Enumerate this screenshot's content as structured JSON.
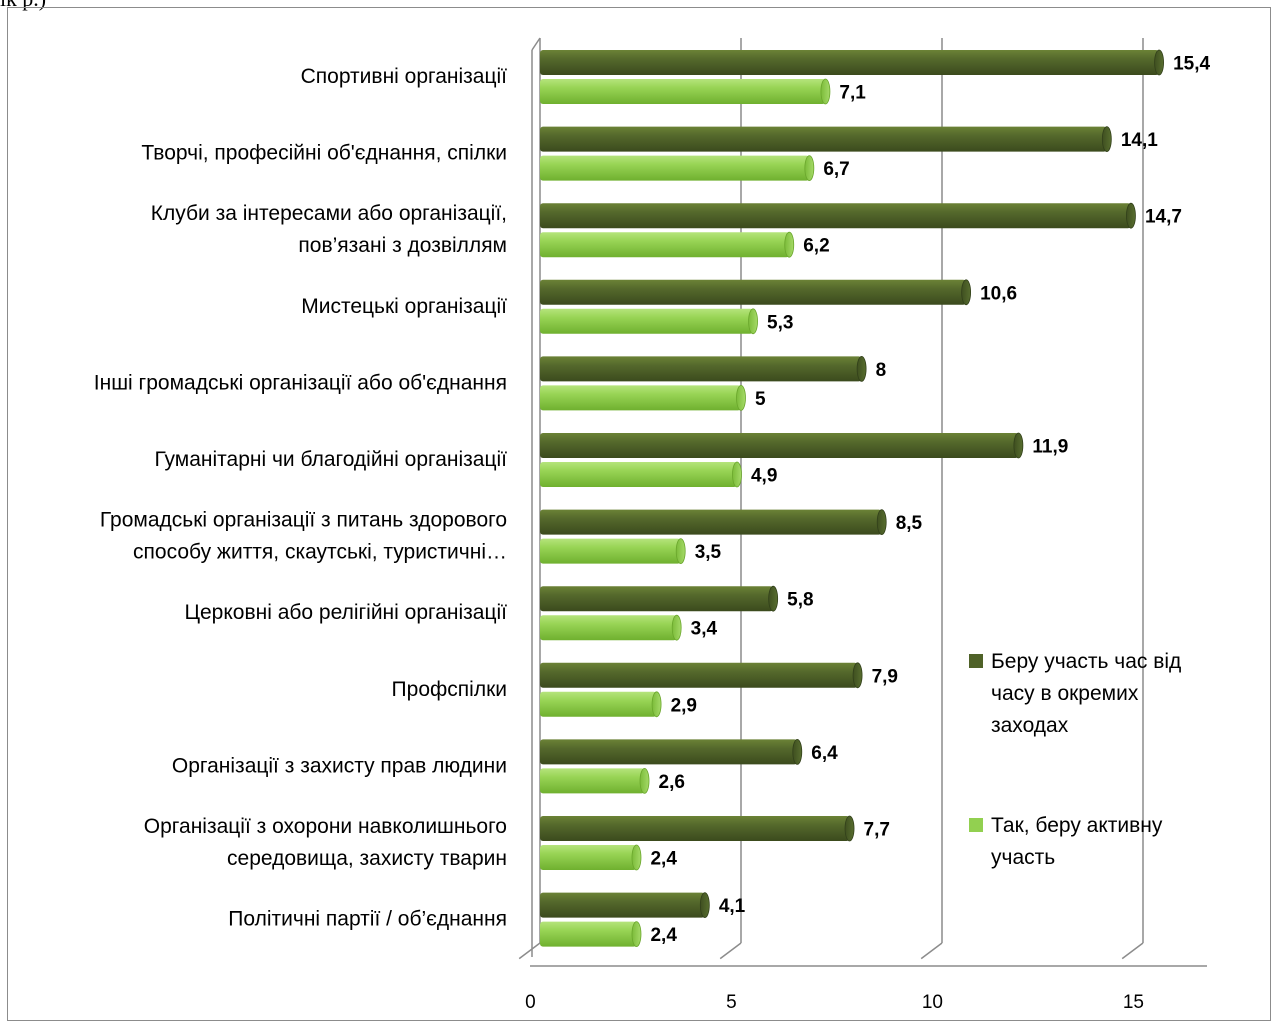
{
  "header_fragment": "ік р.)",
  "chart_data": {
    "type": "bar",
    "orientation": "horizontal",
    "categories": [
      [
        "Спортивні організації"
      ],
      [
        "Творчі, професійні об'єднання, спілки"
      ],
      [
        "Клуби за інтересами або організації,",
        "пов’язані з дозвіллям"
      ],
      [
        "Мистецькі організації"
      ],
      [
        "Інші громадські організації або об'єднання"
      ],
      [
        "Гуманітарні чи благодійні організації"
      ],
      [
        "Громадські організації з питань здорового",
        "способу життя, скаутські, туристичні…"
      ],
      [
        "Церковні або релігійні організації"
      ],
      [
        "Профспілки"
      ],
      [
        "Організації з захисту прав людини"
      ],
      [
        "Організації з охорони навколишнього",
        "середовища, захисту тварин"
      ],
      [
        "Політичні партії / об’єднання"
      ]
    ],
    "series": [
      {
        "name": "Беру участь час від часу в окремих заходах",
        "color": "#4f6228",
        "values": [
          15.4,
          14.1,
          14.7,
          10.6,
          8,
          11.9,
          8.5,
          5.8,
          7.9,
          6.4,
          7.7,
          4.1
        ],
        "labels": [
          "15,4",
          "14,1",
          "14,7",
          "10,6",
          "8",
          "11,9",
          "8,5",
          "5,8",
          "7,9",
          "6,4",
          "7,7",
          "4,1"
        ]
      },
      {
        "name": "Так, беру активну участь",
        "color": "#92d050",
        "values": [
          7.1,
          6.7,
          6.2,
          5.3,
          5,
          4.9,
          3.5,
          3.4,
          2.9,
          2.6,
          2.4,
          2.4
        ],
        "labels": [
          "7,1",
          "6,7",
          "6,2",
          "5,3",
          "5",
          "4,9",
          "3,5",
          "3,4",
          "2,9",
          "2,6",
          "2,4",
          "2,4"
        ]
      }
    ],
    "xlim": [
      0,
      17
    ],
    "xticks": [
      0,
      5,
      10,
      15
    ],
    "grid": true,
    "legend": {
      "position": "right",
      "entries": [
        [
          "Беру участь час від",
          "часу в окремих",
          "заходах"
        ],
        [
          "Так, беру активну",
          "участь"
        ]
      ]
    },
    "title": "",
    "xlabel": "",
    "ylabel": ""
  }
}
